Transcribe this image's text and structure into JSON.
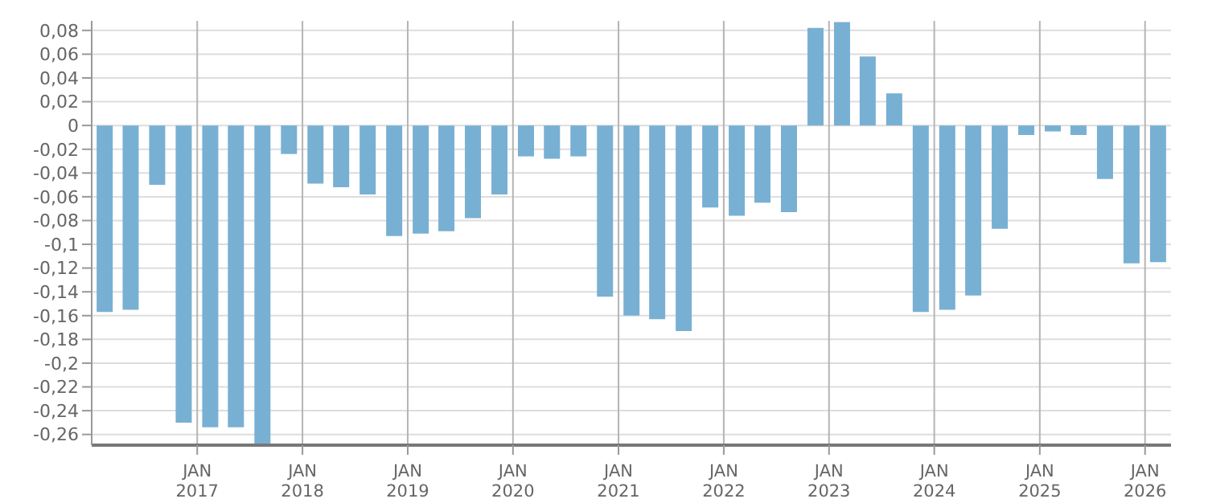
{
  "chart_data": {
    "type": "bar",
    "color": "#78b0d3",
    "x": [
      "2016-02-15",
      "2016-05-15",
      "2016-08-15",
      "2016-11-15",
      "2017-02-15",
      "2017-05-15",
      "2017-08-15",
      "2017-11-15",
      "2018-02-15",
      "2018-05-15",
      "2018-08-15",
      "2018-11-15",
      "2019-02-15",
      "2019-05-15",
      "2019-08-15",
      "2019-11-15",
      "2020-02-15",
      "2020-05-15",
      "2020-08-15",
      "2020-11-15",
      "2021-02-15",
      "2021-05-15",
      "2021-08-15",
      "2021-11-15",
      "2022-02-15",
      "2022-05-15",
      "2022-08-15",
      "2022-11-15",
      "2023-02-15",
      "2023-05-15",
      "2023-08-15",
      "2023-11-15",
      "2024-02-15",
      "2024-05-15",
      "2024-08-15",
      "2024-11-15",
      "2025-02-15",
      "2025-05-15",
      "2025-08-15",
      "2025-11-15",
      "2026-02-15"
    ],
    "values": [
      -0.157,
      -0.155,
      -0.05,
      -0.25,
      -0.254,
      -0.254,
      -0.269,
      -0.024,
      -0.049,
      -0.052,
      -0.058,
      -0.093,
      -0.091,
      -0.089,
      -0.078,
      -0.058,
      -0.026,
      -0.028,
      -0.026,
      -0.144,
      -0.16,
      -0.163,
      -0.173,
      -0.069,
      -0.076,
      -0.065,
      -0.073,
      0.082,
      0.087,
      0.058,
      0.027,
      -0.157,
      -0.155,
      -0.143,
      -0.087,
      -0.008,
      -0.005,
      -0.008,
      -0.045,
      -0.116,
      -0.115
    ],
    "xlim": [
      "2016-01-01",
      "2026-04-01"
    ],
    "xticks": [
      {
        "value": "2017-01-01",
        "label": "JAN\n2017"
      },
      {
        "value": "2018-01-01",
        "label": "JAN\n2018"
      },
      {
        "value": "2019-01-01",
        "label": "JAN\n2019"
      },
      {
        "value": "2020-01-01",
        "label": "JAN\n2020"
      },
      {
        "value": "2021-01-01",
        "label": "JAN\n2021"
      },
      {
        "value": "2022-01-01",
        "label": "JAN\n2022"
      },
      {
        "value": "2023-01-01",
        "label": "JAN\n2023"
      },
      {
        "value": "2024-01-01",
        "label": "JAN\n2024"
      },
      {
        "value": "2025-01-01",
        "label": "JAN\n2025"
      },
      {
        "value": "2026-01-01",
        "label": "JAN\n2026"
      }
    ],
    "ylim": [
      -0.269,
      0.088
    ],
    "yticks": [
      {
        "value": 0.08,
        "label": "0,08"
      },
      {
        "value": 0.06,
        "label": "0,06"
      },
      {
        "value": 0.04,
        "label": "0,04"
      },
      {
        "value": 0.02,
        "label": "0,02"
      },
      0,
      {
        "value": -0.02,
        "label": "-0,02"
      },
      {
        "value": -0.04,
        "label": "-0,04"
      },
      {
        "value": -0.06,
        "label": "-0,06"
      },
      {
        "value": -0.08,
        "label": "-0,08"
      },
      {
        "value": -0.1,
        "label": "-0,1"
      },
      {
        "value": -0.12,
        "label": "-0,12"
      },
      {
        "value": -0.14,
        "label": "-0,14"
      },
      {
        "value": -0.16,
        "label": "-0,16"
      },
      {
        "value": -0.18,
        "label": "-0,18"
      },
      {
        "value": -0.2,
        "label": "-0,2"
      },
      {
        "value": -0.22,
        "label": "-0,22"
      },
      {
        "value": -0.24,
        "label": "-0,24"
      },
      {
        "value": -0.26,
        "label": "-0,26"
      }
    ],
    "grid": true
  }
}
